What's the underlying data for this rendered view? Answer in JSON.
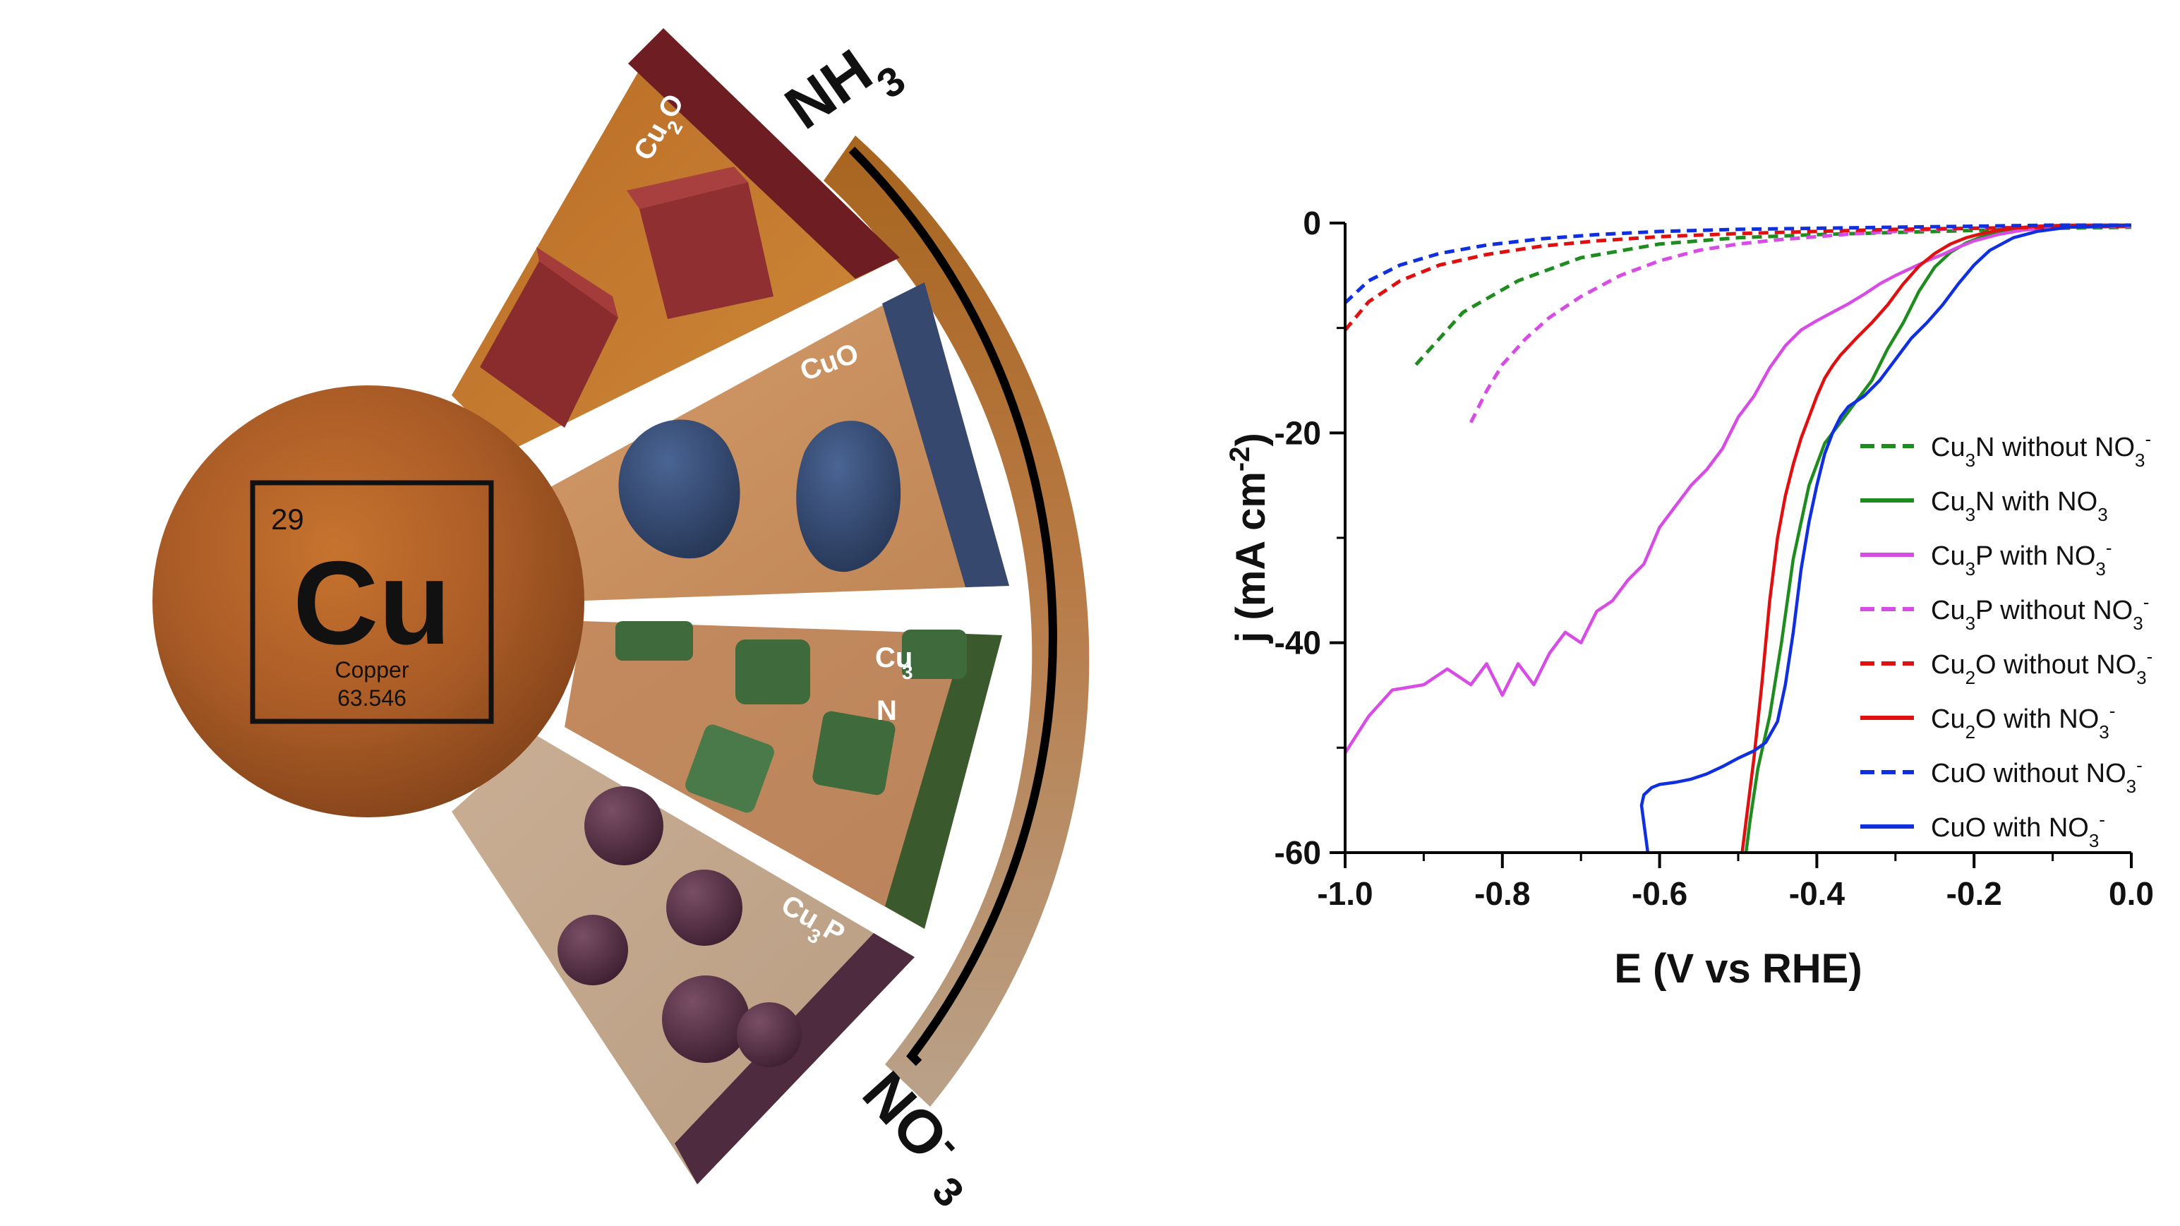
{
  "illustration": {
    "element": {
      "number": "29",
      "symbol": "Cu",
      "name": "Copper",
      "mass": "63.546"
    },
    "sectors": [
      {
        "base": "Cu",
        "sub": "2",
        "tail": "O",
        "color": "#6e1e22"
      },
      {
        "base": "CuO",
        "sub": "",
        "tail": "",
        "color": "#36486e"
      },
      {
        "base": "Cu",
        "sub": "3",
        "tail": "N",
        "color": "#3a5a2e"
      },
      {
        "base": "Cu",
        "sub": "3",
        "tail": "P",
        "color": "#4e2b3e"
      }
    ],
    "product": {
      "base": "NH",
      "sub": "3"
    },
    "reactant": {
      "base": "NO",
      "sub": "3",
      "sup": "-"
    }
  },
  "chart_data": {
    "type": "line",
    "xlabel": "E (V vs RHE)",
    "ylabel": {
      "base": "j (mA cm",
      "sup": "-2",
      "tail": ")"
    },
    "xlim": [
      -1.0,
      0.0
    ],
    "ylim": [
      -60,
      0
    ],
    "xticks": [
      -1.0,
      -0.8,
      -0.6,
      -0.4,
      -0.2,
      0.0
    ],
    "xtick_labels": [
      "-1.0",
      "-0.8",
      "-0.6",
      "-0.4",
      "-0.2",
      "0.0"
    ],
    "yticks": [
      0,
      -20,
      -40,
      -60
    ],
    "ytick_labels": [
      "0",
      "-20",
      "-40",
      "-60"
    ],
    "grid": false,
    "legend_position": "right",
    "series": [
      {
        "name": "Cu3N without NO3-",
        "label": {
          "a": "Cu",
          "s1": "3",
          "b": "N without NO",
          "s2": "3",
          "p": "-"
        },
        "color": "#1e8c1e",
        "dashed": true,
        "x": [
          -0.91,
          -0.85,
          -0.78,
          -0.7,
          -0.6,
          -0.5,
          -0.4,
          -0.3,
          -0.2,
          -0.1,
          0.0
        ],
        "y": [
          -13.5,
          -8.5,
          -5.5,
          -3.3,
          -2.0,
          -1.4,
          -1.1,
          -0.9,
          -0.7,
          -0.5,
          -0.4
        ]
      },
      {
        "name": "Cu3N with NO3-",
        "label": {
          "a": "Cu",
          "s1": "3",
          "b": "N with NO",
          "s2": "3",
          "p": ""
        },
        "color": "#1e8c1e",
        "dashed": false,
        "x": [
          -0.49,
          -0.485,
          -0.475,
          -0.46,
          -0.445,
          -0.43,
          -0.41,
          -0.39,
          -0.37,
          -0.35,
          -0.33,
          -0.31,
          -0.29,
          -0.27,
          -0.25,
          -0.23,
          -0.21,
          -0.19,
          -0.17,
          -0.15,
          -0.12,
          -0.08,
          -0.04,
          0.0
        ],
        "y": [
          -60,
          -57,
          -52,
          -47,
          -40,
          -32,
          -25,
          -21,
          -19,
          -17,
          -15,
          -12,
          -9.5,
          -6.5,
          -4.2,
          -2.8,
          -1.9,
          -1.3,
          -0.9,
          -0.6,
          -0.4,
          -0.3,
          -0.2,
          -0.2
        ]
      },
      {
        "name": "Cu3P with NO3-",
        "label": {
          "a": "Cu",
          "s1": "3",
          "b": "P with NO",
          "s2": "3",
          "p": "-"
        },
        "color": "#d84ce6",
        "dashed": false,
        "x": [
          -1.0,
          -0.97,
          -0.94,
          -0.9,
          -0.87,
          -0.84,
          -0.82,
          -0.8,
          -0.78,
          -0.76,
          -0.74,
          -0.72,
          -0.7,
          -0.68,
          -0.66,
          -0.64,
          -0.62,
          -0.6,
          -0.58,
          -0.56,
          -0.54,
          -0.52,
          -0.5,
          -0.48,
          -0.46,
          -0.44,
          -0.42,
          -0.4,
          -0.38,
          -0.36,
          -0.34,
          -0.32,
          -0.3,
          -0.28,
          -0.26,
          -0.24,
          -0.22,
          -0.2,
          -0.17,
          -0.14,
          -0.1,
          -0.05,
          0.0
        ],
        "y": [
          -50.5,
          -47,
          -44.5,
          -44,
          -42.5,
          -44,
          -42,
          -45,
          -42,
          -44,
          -41,
          -39,
          -40,
          -37,
          -36,
          -34,
          -32.5,
          -29,
          -27,
          -25,
          -23.5,
          -21.5,
          -18.5,
          -16.5,
          -13.8,
          -11.7,
          -10.2,
          -9.3,
          -8.5,
          -7.7,
          -6.8,
          -5.8,
          -5.0,
          -4.3,
          -3.6,
          -3.0,
          -2.3,
          -1.7,
          -1.1,
          -0.7,
          -0.4,
          -0.3,
          -0.3
        ]
      },
      {
        "name": "Cu3P without NO3-",
        "label": {
          "a": "Cu",
          "s1": "3",
          "b": "P without NO",
          "s2": "3",
          "p": "-"
        },
        "color": "#d84ce6",
        "dashed": true,
        "x": [
          -0.84,
          -0.82,
          -0.8,
          -0.77,
          -0.74,
          -0.7,
          -0.65,
          -0.6,
          -0.55,
          -0.5,
          -0.45,
          -0.4,
          -0.35,
          -0.3,
          -0.25,
          -0.2,
          -0.1,
          0.0
        ],
        "y": [
          -19,
          -16,
          -13.5,
          -11,
          -9,
          -7,
          -5,
          -3.6,
          -2.6,
          -2.0,
          -1.6,
          -1.3,
          -1.0,
          -0.8,
          -0.6,
          -0.5,
          -0.4,
          -0.3
        ]
      },
      {
        "name": "Cu2O without NO3-",
        "label": {
          "a": "Cu",
          "s1": "2",
          "b": "O without NO",
          "s2": "3",
          "p": "-"
        },
        "color": "#e01010",
        "dashed": true,
        "x": [
          -1.0,
          -0.97,
          -0.93,
          -0.88,
          -0.82,
          -0.75,
          -0.68,
          -0.6,
          -0.5,
          -0.4,
          -0.3,
          -0.2,
          -0.1,
          0.0
        ],
        "y": [
          -10.2,
          -7.5,
          -5.5,
          -4.0,
          -3.0,
          -2.2,
          -1.7,
          -1.3,
          -1.0,
          -0.8,
          -0.6,
          -0.5,
          -0.4,
          -0.3
        ]
      },
      {
        "name": "Cu2O with NO3-",
        "label": {
          "a": "Cu",
          "s1": "2",
          "b": "O with NO",
          "s2": "3",
          "p": "-"
        },
        "color": "#e01010",
        "dashed": false,
        "x": [
          -0.495,
          -0.49,
          -0.48,
          -0.47,
          -0.46,
          -0.45,
          -0.44,
          -0.43,
          -0.42,
          -0.41,
          -0.4,
          -0.39,
          -0.38,
          -0.37,
          -0.35,
          -0.33,
          -0.31,
          -0.29,
          -0.27,
          -0.25,
          -0.23,
          -0.21,
          -0.19,
          -0.17,
          -0.15,
          -0.12,
          -0.08,
          -0.04,
          0.0
        ],
        "y": [
          -60,
          -57,
          -51,
          -44,
          -36,
          -30,
          -26,
          -23,
          -20.5,
          -18.5,
          -16.5,
          -14.8,
          -13.6,
          -12.6,
          -11,
          -9.5,
          -7.8,
          -5.8,
          -4.1,
          -2.9,
          -2.0,
          -1.4,
          -1.0,
          -0.7,
          -0.5,
          -0.3,
          -0.2,
          -0.2,
          -0.2
        ]
      },
      {
        "name": "CuO without NO3-",
        "label": {
          "a": "CuO without NO",
          "s1": "",
          "b": "",
          "s2": "3",
          "p": "-"
        },
        "color": "#1030e0",
        "dashed": true,
        "x": [
          -1.0,
          -0.97,
          -0.93,
          -0.88,
          -0.82,
          -0.75,
          -0.68,
          -0.6,
          -0.5,
          -0.4,
          -0.3,
          -0.2,
          -0.1,
          0.0
        ],
        "y": [
          -7.6,
          -5.5,
          -4.0,
          -2.9,
          -2.1,
          -1.5,
          -1.1,
          -0.8,
          -0.6,
          -0.5,
          -0.4,
          -0.3,
          -0.2,
          -0.2
        ]
      },
      {
        "name": "CuO with NO3-",
        "label": {
          "a": "CuO with NO",
          "s1": "",
          "b": "",
          "s2": "3",
          "p": "-"
        },
        "color": "#1030e0",
        "dashed": false,
        "x": [
          -0.615,
          -0.623,
          -0.62,
          -0.61,
          -0.6,
          -0.58,
          -0.56,
          -0.54,
          -0.52,
          -0.5,
          -0.48,
          -0.465,
          -0.45,
          -0.44,
          -0.43,
          -0.42,
          -0.41,
          -0.4,
          -0.39,
          -0.38,
          -0.37,
          -0.36,
          -0.34,
          -0.32,
          -0.3,
          -0.28,
          -0.26,
          -0.24,
          -0.22,
          -0.2,
          -0.18,
          -0.15,
          -0.12,
          -0.08,
          -0.04,
          0.0
        ],
        "y": [
          -60,
          -55.5,
          -54.5,
          -53.8,
          -53.5,
          -53.3,
          -53.0,
          -52.5,
          -51.8,
          -51.0,
          -50.3,
          -49.5,
          -47.5,
          -44.0,
          -39.0,
          -33.0,
          -28.5,
          -25.0,
          -22.0,
          -20.0,
          -18.5,
          -17.5,
          -16.5,
          -15.0,
          -13.0,
          -11.0,
          -9.5,
          -7.8,
          -5.8,
          -4.0,
          -2.6,
          -1.4,
          -0.8,
          -0.4,
          -0.3,
          -0.2
        ]
      }
    ]
  }
}
